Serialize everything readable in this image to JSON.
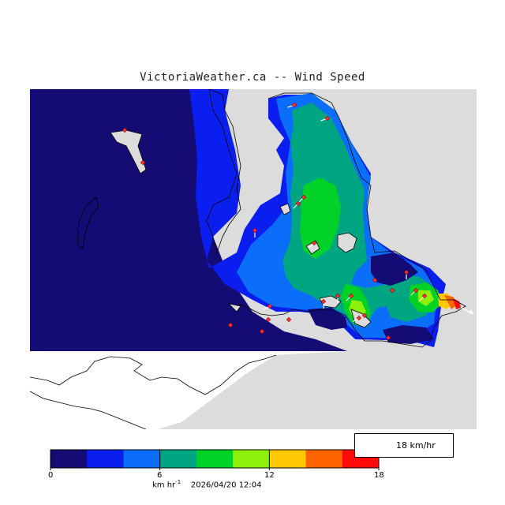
{
  "title": "VictoriaWeather.ca -- Wind Speed",
  "legend": {
    "reference_speed": "18 km/hr",
    "arrow_icon": "wind-arrow-icon"
  },
  "colorbar": {
    "ticks": [
      "0",
      "6",
      "12",
      "18"
    ],
    "colors": [
      "#140c74",
      "#0a1ef0",
      "#0a6efa",
      "#00a682",
      "#00d228",
      "#8cf00a",
      "#ffc800",
      "#ff6400",
      "#ff0a0a"
    ],
    "units_prefix": "km hr",
    "units_exponent": "-1",
    "timestamp": "2026/04/20 12:04"
  },
  "map_colors": {
    "land": "#dcdcdc",
    "water_base": "#140c74",
    "unmasked": "#ffffff"
  },
  "stations_count": 24
}
